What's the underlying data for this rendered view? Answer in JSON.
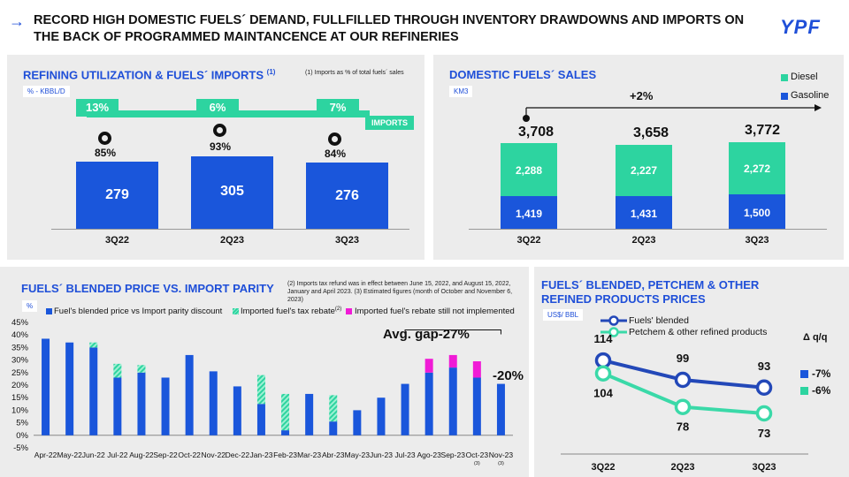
{
  "header": {
    "title": "RECORD HIGH DOMESTIC FUELS´ DEMAND, FULLFILLED THROUGH INVENTORY DRAWDOWNS AND IMPORTS ON THE BACK OF PROGRAMMED MAINTANCENCE AT OUR REFINERIES",
    "logo": "YPF"
  },
  "refining": {
    "title": "REFINING UTILIZATION & FUELS´ IMPORTS",
    "title_note": "(1)",
    "footnote": "(1) Imports as % of total fuels´ sales",
    "unit": "% - KBBL/D",
    "imports_label": "IMPORTS",
    "categories": [
      "3Q22",
      "2Q23",
      "3Q23"
    ],
    "imports_pct": [
      "13%",
      "6%",
      "7%"
    ],
    "utilization_pct": [
      "85%",
      "93%",
      "84%"
    ],
    "kbbld": [
      279,
      305,
      276
    ]
  },
  "sales": {
    "title": "DOMESTIC FUELS´ SALES",
    "unit": "KM3",
    "growth": "+2%",
    "legend": [
      "Diesel",
      "Gasoline"
    ],
    "colors": {
      "diesel": "#2dd4a0",
      "gasoline": "#1a56db"
    },
    "categories": [
      "3Q22",
      "2Q23",
      "3Q23"
    ],
    "totals": [
      "3,708",
      "3,658",
      "3,772"
    ],
    "diesel": [
      2288,
      2227,
      2272
    ],
    "gasoline": [
      1419,
      1431,
      1500
    ],
    "diesel_labels": [
      "2,288",
      "2,227",
      "2,272"
    ],
    "gasoline_labels": [
      "1,419",
      "1,431",
      "1,500"
    ]
  },
  "chart_data": [
    {
      "type": "bar",
      "title": "FUELS´ BLENDED PRICE VS. IMPORT PARITY",
      "unit": "%",
      "footnote": "(2) Imports tax refund was in effect between June 15, 2022, and August 15, 2022, January and April 2023. (3) Estimated figures (month of October and November 6, 2023)",
      "legend": [
        "Fuel's blended price vs Import parity discount",
        "Imported fuel's tax rebate",
        "(2)",
        "Imported fuel's rebate still not implemented"
      ],
      "yticks": [
        "45%",
        "40%",
        "35%",
        "30%",
        "25%",
        "20%",
        "15%",
        "10%",
        "5%",
        "0%",
        "-5%"
      ],
      "ylim": [
        -5,
        45
      ],
      "categories": [
        "Apr-22",
        "May-22",
        "Jun-22",
        "Jul-22",
        "Aug-22",
        "Sep-22",
        "Oct-22",
        "Nov-22",
        "Dec-22",
        "Jan-23",
        "Feb-23",
        "Mar-23",
        "Abr-23",
        "May-23",
        "Jun-23",
        "Jul-23",
        "Ago-23",
        "Sep-23",
        "Oct-23",
        "Nov-23"
      ],
      "category_notes": [
        "",
        "",
        "",
        "",
        "",
        "",
        "",
        "",
        "",
        "",
        "",
        "",
        "",
        "",
        "",
        "",
        "",
        "",
        "(3)",
        "(3)"
      ],
      "series": [
        {
          "name": "discount",
          "values": [
            38.5,
            37,
            35,
            23,
            25,
            23,
            32,
            25.5,
            19.5,
            12.5,
            2,
            16.5,
            5.5,
            10,
            15,
            20.5,
            25,
            27,
            23,
            20.5
          ]
        },
        {
          "name": "tax_rebate",
          "values": [
            0,
            0,
            2,
            5.5,
            3,
            0,
            0,
            0,
            0,
            11.5,
            14.5,
            0,
            10.5,
            0,
            0,
            0,
            0,
            0,
            0,
            0
          ]
        },
        {
          "name": "not_implemented",
          "values": [
            0,
            0,
            0,
            0,
            0,
            0,
            0,
            0,
            0,
            0,
            0,
            0,
            0,
            0,
            0,
            0,
            5.5,
            5,
            6.5,
            0
          ]
        }
      ],
      "colors": {
        "discount": "#1a56db",
        "tax_rebate": "#2dd4a0",
        "not_implemented": "#f01bd6"
      },
      "annotations": {
        "avg_gap": "Avg. gap-27%",
        "last": "-20%"
      }
    },
    {
      "type": "line",
      "title": "FUELS´ BLENDED, PETCHEM & OTHER REFINED PRODUCTS PRICES",
      "unit": "US$/ BBL",
      "categories": [
        "3Q22",
        "2Q23",
        "3Q23"
      ],
      "series": [
        {
          "name": "Fuels' blended",
          "values": [
            114,
            99,
            93
          ],
          "change": "-7%"
        },
        {
          "name": "Petchem & other refined products",
          "values": [
            104,
            78,
            73
          ],
          "change": "-6%"
        }
      ],
      "delta_label": "Δ q/q",
      "colors": {
        "blended": "#2348b8",
        "petchem": "#3ad9a8"
      }
    }
  ]
}
